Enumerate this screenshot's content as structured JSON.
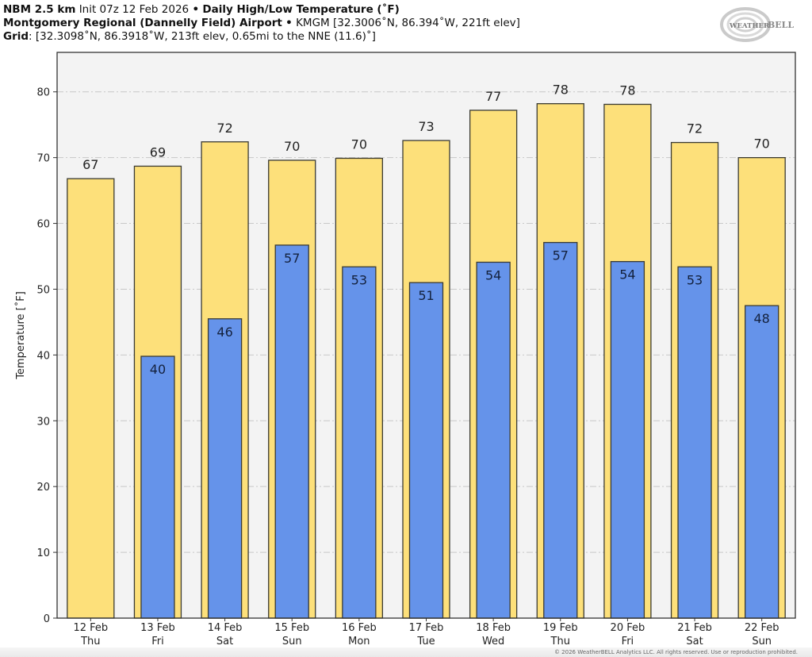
{
  "header": {
    "model": "NBM 2.5 km",
    "init": "Init 07z 12 Feb 2026",
    "separator": "•",
    "product": "Daily High/Low Temperature (˚F)",
    "station_name": "Montgomery Regional (Dannelly Field) Airport",
    "station_info": "KMGM [32.3006˚N, 86.394˚W, 221ft elev]",
    "grid_label": "Grid",
    "grid_info": ": [32.3098˚N, 86.3918˚W, 213ft elev, 0.65mi to the NNE (11.6)˚]"
  },
  "logo": {
    "text_a": "WEATHER",
    "text_b": "BELL"
  },
  "copyright": "© 2026 WeatherBELL Analytics LLC. All rights reserved. Use or reproduction prohibited.",
  "colors": {
    "high": "#fde07a",
    "low": "#6593ea",
    "plot_bg": "#f3f3f3",
    "bar_edge": "#3a3a32",
    "grid": "#c8c8c8",
    "high_label": "#222222",
    "low_label": "#14213d"
  },
  "chart_data": {
    "type": "bar",
    "title": "Daily High/Low Temperature (˚F)",
    "xlabel": "",
    "ylabel": "Temperature [˚F]",
    "ylim": [
      0,
      86
    ],
    "yticks": [
      0,
      10,
      20,
      30,
      40,
      50,
      60,
      70,
      80
    ],
    "grid": true,
    "categories": [
      "12 Feb\nThu",
      "13 Feb\nFri",
      "14 Feb\nSat",
      "15 Feb\nSun",
      "16 Feb\nMon",
      "17 Feb\nTue",
      "18 Feb\nWed",
      "19 Feb\nThu",
      "20 Feb\nFri",
      "21 Feb\nSat",
      "22 Feb\nSun"
    ],
    "category_dates": [
      "12 Feb",
      "13 Feb",
      "14 Feb",
      "15 Feb",
      "16 Feb",
      "17 Feb",
      "18 Feb",
      "19 Feb",
      "20 Feb",
      "21 Feb",
      "22 Feb"
    ],
    "category_days": [
      "Thu",
      "Fri",
      "Sat",
      "Sun",
      "Mon",
      "Tue",
      "Wed",
      "Thu",
      "Fri",
      "Sat",
      "Sun"
    ],
    "series": [
      {
        "name": "High",
        "values": [
          66.8,
          68.7,
          72.4,
          69.6,
          69.9,
          72.6,
          77.2,
          78.2,
          78.1,
          72.3,
          70.0
        ],
        "labels": [
          "67",
          "69",
          "72",
          "70",
          "70",
          "73",
          "77",
          "78",
          "78",
          "72",
          "70"
        ]
      },
      {
        "name": "Low",
        "values": [
          null,
          39.8,
          45.5,
          56.7,
          53.4,
          51.0,
          54.1,
          57.1,
          54.2,
          53.4,
          47.5
        ],
        "labels": [
          "",
          "40",
          "46",
          "57",
          "53",
          "51",
          "54",
          "57",
          "54",
          "53",
          "48"
        ]
      }
    ]
  }
}
